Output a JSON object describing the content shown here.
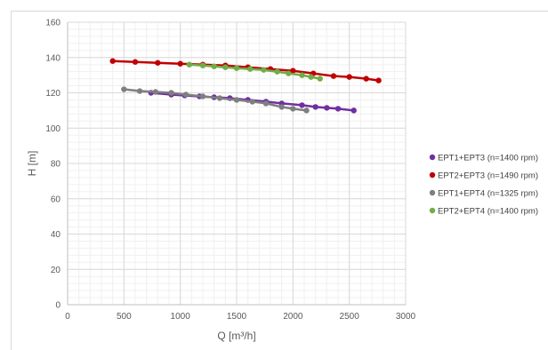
{
  "chart_data": {
    "type": "line",
    "title": "",
    "xlabel": "Q [m³/h]",
    "ylabel": "H [m]",
    "xlim": [
      0,
      3000
    ],
    "ylim": [
      0,
      160
    ],
    "xticks": [
      0,
      500,
      1000,
      1500,
      2000,
      2500,
      3000
    ],
    "yticks": [
      0,
      20,
      40,
      60,
      80,
      100,
      120,
      140,
      160
    ],
    "x_minor_step": 100,
    "y_minor_step": 4,
    "grid": true,
    "legend_position": "right",
    "series": [
      {
        "name": "EPT1+EPT3 (n=1400 rpm)",
        "color": "#7030a0",
        "points": [
          [
            740,
            120
          ],
          [
            920,
            119
          ],
          [
            1040,
            118.5
          ],
          [
            1170,
            118
          ],
          [
            1300,
            117.5
          ],
          [
            1440,
            117
          ],
          [
            1600,
            116
          ],
          [
            1760,
            115
          ],
          [
            1900,
            114
          ],
          [
            2080,
            113
          ],
          [
            2200,
            112
          ],
          [
            2300,
            111.5
          ],
          [
            2400,
            111
          ],
          [
            2540,
            110
          ]
        ]
      },
      {
        "name": "EPT2+EPT3 (n=1490 rpm)",
        "color": "#c00000",
        "points": [
          [
            400,
            138
          ],
          [
            600,
            137.5
          ],
          [
            800,
            137
          ],
          [
            1000,
            136.5
          ],
          [
            1200,
            136
          ],
          [
            1400,
            135.5
          ],
          [
            1600,
            134.5
          ],
          [
            1800,
            133.5
          ],
          [
            2000,
            132.5
          ],
          [
            2180,
            131
          ],
          [
            2360,
            129.5
          ],
          [
            2500,
            129
          ],
          [
            2650,
            128
          ],
          [
            2760,
            127
          ]
        ]
      },
      {
        "name": "EPT1+EPT4 (n=1325 rpm)",
        "color": "#7f7f7f",
        "points": [
          [
            500,
            122
          ],
          [
            640,
            121
          ],
          [
            780,
            120.5
          ],
          [
            920,
            120
          ],
          [
            1050,
            119
          ],
          [
            1200,
            118
          ],
          [
            1350,
            117
          ],
          [
            1500,
            116
          ],
          [
            1640,
            115
          ],
          [
            1760,
            114
          ],
          [
            1900,
            112
          ],
          [
            2000,
            111
          ],
          [
            2120,
            110
          ]
        ]
      },
      {
        "name": "EPT2+EPT4 (n=1400 rpm)",
        "color": "#70ad47",
        "points": [
          [
            1080,
            136
          ],
          [
            1200,
            135.5
          ],
          [
            1300,
            135
          ],
          [
            1400,
            134.5
          ],
          [
            1500,
            134
          ],
          [
            1620,
            133.5
          ],
          [
            1740,
            133
          ],
          [
            1860,
            132
          ],
          [
            1960,
            131
          ],
          [
            2080,
            130
          ],
          [
            2160,
            129
          ],
          [
            2240,
            128
          ]
        ]
      }
    ]
  }
}
